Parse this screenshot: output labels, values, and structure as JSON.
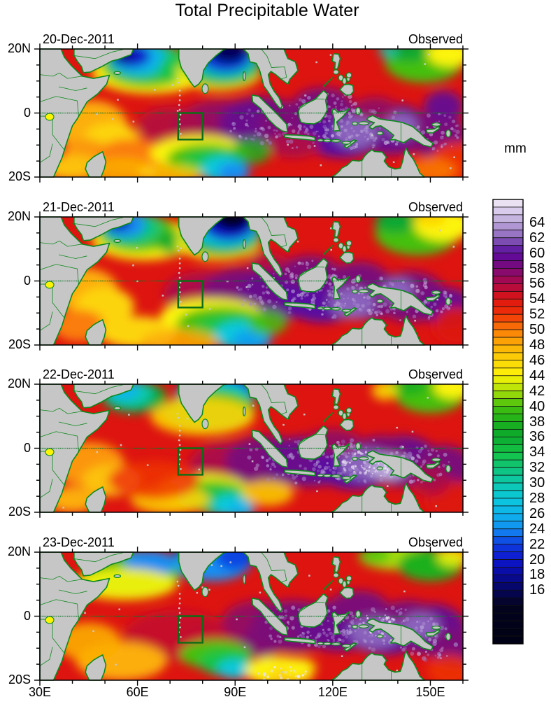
{
  "title": "Total Precipitable Water",
  "panels": [
    {
      "date": "20-Dec-2011",
      "source": "Observed"
    },
    {
      "date": "21-Dec-2011",
      "source": "Observed"
    },
    {
      "date": "22-Dec-2011",
      "source": "Observed"
    },
    {
      "date": "23-Dec-2011",
      "source": "Observed"
    }
  ],
  "y_axis_tick_labels": [
    "20N",
    "0",
    "20S"
  ],
  "x_axis_tick_labels": [
    "30E",
    "60E",
    "90E",
    "120E",
    "150E"
  ],
  "colorbar": {
    "unit": "mm",
    "tick_labels": [
      64,
      62,
      60,
      58,
      56,
      54,
      52,
      50,
      48,
      46,
      44,
      42,
      40,
      38,
      36,
      34,
      32,
      30,
      28,
      26,
      24,
      22,
      20,
      18,
      16
    ]
  },
  "chart_data": {
    "type": "heatmap",
    "title": "Total Precipitable Water",
    "variable": "total precipitable water",
    "unit": "mm",
    "panels": [
      {
        "date": "20-Dec-2011",
        "source": "Observed"
      },
      {
        "date": "21-Dec-2011",
        "source": "Observed"
      },
      {
        "date": "22-Dec-2011",
        "source": "Observed"
      },
      {
        "date": "23-Dec-2011",
        "source": "Observed"
      }
    ],
    "x_axis": {
      "tick_labels": [
        "30E",
        "60E",
        "90E",
        "120E",
        "150E"
      ],
      "range_deg_east": [
        30,
        160
      ],
      "minor_tick_deg": 10
    },
    "y_axis": {
      "tick_labels": [
        "20N",
        "0",
        "20S"
      ],
      "range_deg_north": [
        -20,
        20
      ],
      "minor_tick_deg": 5
    },
    "colorbar": {
      "unit": "mm",
      "levels_labeled": [
        16,
        18,
        20,
        22,
        24,
        26,
        28,
        30,
        32,
        34,
        36,
        38,
        40,
        42,
        44,
        46,
        48,
        50,
        52,
        54,
        56,
        58,
        60,
        62,
        64
      ],
      "box_interval_mm": 1
    },
    "annotations": {
      "equator_line": "dashed green line at 0 latitude",
      "highlight_box_deg": {
        "lon_range": [
          72.5,
          80
        ],
        "lat_range": [
          -8.3,
          0
        ]
      },
      "land": "grey with green coastlines"
    }
  }
}
